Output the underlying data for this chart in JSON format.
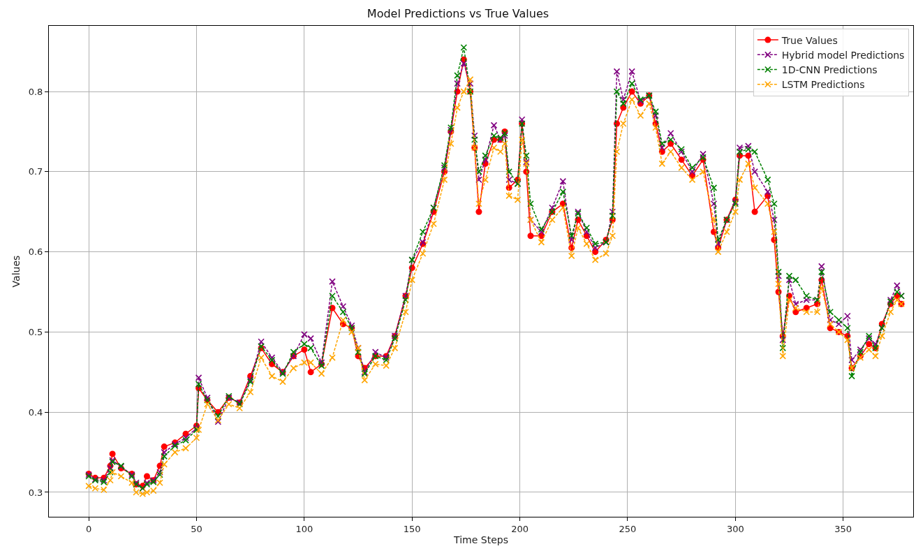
{
  "chart_data": {
    "type": "line",
    "title": "Model Predictions vs True Values",
    "xlabel": "Time Steps",
    "ylabel": "Values",
    "x": [
      0,
      3,
      7,
      10,
      11,
      15,
      20,
      22,
      25,
      27,
      30,
      33,
      35,
      40,
      45,
      50,
      51,
      55,
      60,
      65,
      70,
      75,
      80,
      85,
      90,
      95,
      100,
      103,
      108,
      113,
      118,
      122,
      125,
      128,
      133,
      138,
      142,
      147,
      150,
      155,
      160,
      165,
      168,
      171,
      174,
      177,
      179,
      181,
      184,
      188,
      191,
      193,
      195,
      199,
      201,
      203,
      205,
      210,
      215,
      220,
      224,
      227,
      231,
      235,
      240,
      243,
      245,
      248,
      252,
      256,
      260,
      263,
      266,
      270,
      275,
      280,
      285,
      290,
      292,
      296,
      300,
      302,
      306,
      309,
      315,
      318,
      320,
      322,
      325,
      328,
      333,
      338,
      340,
      344,
      348,
      352,
      354,
      358,
      362,
      365,
      368,
      372,
      375,
      377
    ],
    "series": [
      {
        "name": "True Values",
        "color": "#ff0000",
        "marker": "circle",
        "line_style": "solid",
        "values": [
          0.323,
          0.318,
          0.318,
          0.333,
          0.348,
          0.33,
          0.323,
          0.31,
          0.308,
          0.32,
          0.315,
          0.333,
          0.357,
          0.362,
          0.373,
          0.383,
          0.43,
          0.415,
          0.4,
          0.418,
          0.412,
          0.445,
          0.48,
          0.46,
          0.45,
          0.47,
          0.478,
          0.45,
          0.46,
          0.53,
          0.51,
          0.505,
          0.47,
          0.455,
          0.47,
          0.47,
          0.495,
          0.545,
          0.58,
          0.61,
          0.65,
          0.7,
          0.75,
          0.8,
          0.84,
          0.8,
          0.73,
          0.65,
          0.71,
          0.74,
          0.74,
          0.75,
          0.68,
          0.69,
          0.76,
          0.7,
          0.62,
          0.62,
          0.65,
          0.66,
          0.605,
          0.64,
          0.62,
          0.6,
          0.615,
          0.64,
          0.76,
          0.78,
          0.8,
          0.785,
          0.795,
          0.76,
          0.725,
          0.735,
          0.715,
          0.695,
          0.715,
          0.625,
          0.605,
          0.64,
          0.665,
          0.72,
          0.72,
          0.65,
          0.67,
          0.615,
          0.55,
          0.495,
          0.545,
          0.525,
          0.53,
          0.535,
          0.565,
          0.505,
          0.5,
          0.495,
          0.455,
          0.47,
          0.485,
          0.48,
          0.51,
          0.535,
          0.545,
          0.535
        ]
      },
      {
        "name": "Hybrid model Predictions",
        "color": "#800080",
        "marker": "cross",
        "line_style": "dashed",
        "values": [
          0.322,
          0.316,
          0.315,
          0.33,
          0.34,
          0.332,
          0.322,
          0.312,
          0.305,
          0.312,
          0.315,
          0.325,
          0.35,
          0.36,
          0.368,
          0.38,
          0.443,
          0.418,
          0.388,
          0.418,
          0.412,
          0.44,
          0.488,
          0.468,
          0.45,
          0.47,
          0.497,
          0.492,
          0.462,
          0.563,
          0.532,
          0.508,
          0.48,
          0.45,
          0.475,
          0.468,
          0.495,
          0.545,
          0.59,
          0.612,
          0.655,
          0.705,
          0.752,
          0.81,
          0.835,
          0.81,
          0.745,
          0.69,
          0.715,
          0.758,
          0.74,
          0.745,
          0.69,
          0.685,
          0.765,
          0.712,
          0.64,
          0.625,
          0.655,
          0.688,
          0.615,
          0.65,
          0.625,
          0.605,
          0.612,
          0.65,
          0.825,
          0.79,
          0.825,
          0.788,
          0.795,
          0.77,
          0.73,
          0.748,
          0.725,
          0.7,
          0.722,
          0.66,
          0.61,
          0.64,
          0.662,
          0.73,
          0.732,
          0.7,
          0.675,
          0.64,
          0.57,
          0.49,
          0.565,
          0.535,
          0.54,
          0.54,
          0.582,
          0.515,
          0.51,
          0.52,
          0.465,
          0.478,
          0.492,
          0.485,
          0.505,
          0.54,
          0.558,
          0.545
        ]
      },
      {
        "name": "1D-CNN Predictions",
        "color": "#008000",
        "marker": "cross",
        "line_style": "dashed",
        "values": [
          0.32,
          0.315,
          0.313,
          0.325,
          0.338,
          0.333,
          0.32,
          0.31,
          0.305,
          0.31,
          0.313,
          0.322,
          0.345,
          0.358,
          0.365,
          0.378,
          0.435,
          0.415,
          0.395,
          0.42,
          0.41,
          0.438,
          0.482,
          0.465,
          0.448,
          0.475,
          0.485,
          0.48,
          0.458,
          0.545,
          0.525,
          0.505,
          0.475,
          0.448,
          0.47,
          0.465,
          0.492,
          0.54,
          0.59,
          0.625,
          0.655,
          0.708,
          0.755,
          0.82,
          0.855,
          0.8,
          0.74,
          0.7,
          0.72,
          0.745,
          0.742,
          0.748,
          0.7,
          0.685,
          0.76,
          0.72,
          0.66,
          0.628,
          0.65,
          0.675,
          0.62,
          0.648,
          0.63,
          0.61,
          0.612,
          0.645,
          0.8,
          0.785,
          0.81,
          0.79,
          0.795,
          0.775,
          0.735,
          0.74,
          0.728,
          0.705,
          0.718,
          0.68,
          0.615,
          0.64,
          0.66,
          0.725,
          0.728,
          0.725,
          0.69,
          0.66,
          0.575,
          0.48,
          0.57,
          0.565,
          0.545,
          0.54,
          0.575,
          0.525,
          0.515,
          0.505,
          0.445,
          0.475,
          0.495,
          0.48,
          0.505,
          0.538,
          0.55,
          0.545
        ]
      },
      {
        "name": "LSTM Predictions",
        "color": "#ffa500",
        "marker": "cross",
        "line_style": "dashed",
        "values": [
          0.308,
          0.305,
          0.303,
          0.315,
          0.325,
          0.32,
          0.312,
          0.3,
          0.298,
          0.3,
          0.302,
          0.312,
          0.335,
          0.35,
          0.355,
          0.368,
          0.378,
          0.41,
          0.39,
          0.41,
          0.405,
          0.425,
          0.468,
          0.445,
          0.438,
          0.455,
          0.462,
          0.462,
          0.448,
          0.468,
          0.515,
          0.5,
          0.48,
          0.44,
          0.46,
          0.458,
          0.48,
          0.525,
          0.565,
          0.598,
          0.635,
          0.69,
          0.735,
          0.78,
          0.8,
          0.815,
          0.73,
          0.66,
          0.69,
          0.73,
          0.725,
          0.735,
          0.67,
          0.665,
          0.74,
          0.71,
          0.64,
          0.612,
          0.64,
          0.655,
          0.595,
          0.63,
          0.61,
          0.59,
          0.598,
          0.62,
          0.725,
          0.76,
          0.79,
          0.77,
          0.785,
          0.755,
          0.71,
          0.725,
          0.705,
          0.69,
          0.7,
          0.64,
          0.6,
          0.625,
          0.65,
          0.69,
          0.71,
          0.68,
          0.66,
          0.625,
          0.56,
          0.47,
          0.54,
          0.53,
          0.525,
          0.525,
          0.555,
          0.51,
          0.5,
          0.49,
          0.455,
          0.468,
          0.478,
          0.47,
          0.495,
          0.525,
          0.54,
          0.535
        ]
      }
    ],
    "xlim": [
      -18.5,
      382.5
    ],
    "xticks": [
      0,
      50,
      100,
      150,
      200,
      250,
      300,
      350
    ],
    "ylim": [
      0.2695,
      0.882
    ],
    "yticks": [
      0.3,
      0.4,
      0.5,
      0.6,
      0.7,
      0.8
    ],
    "grid": true,
    "legend": "top right"
  }
}
